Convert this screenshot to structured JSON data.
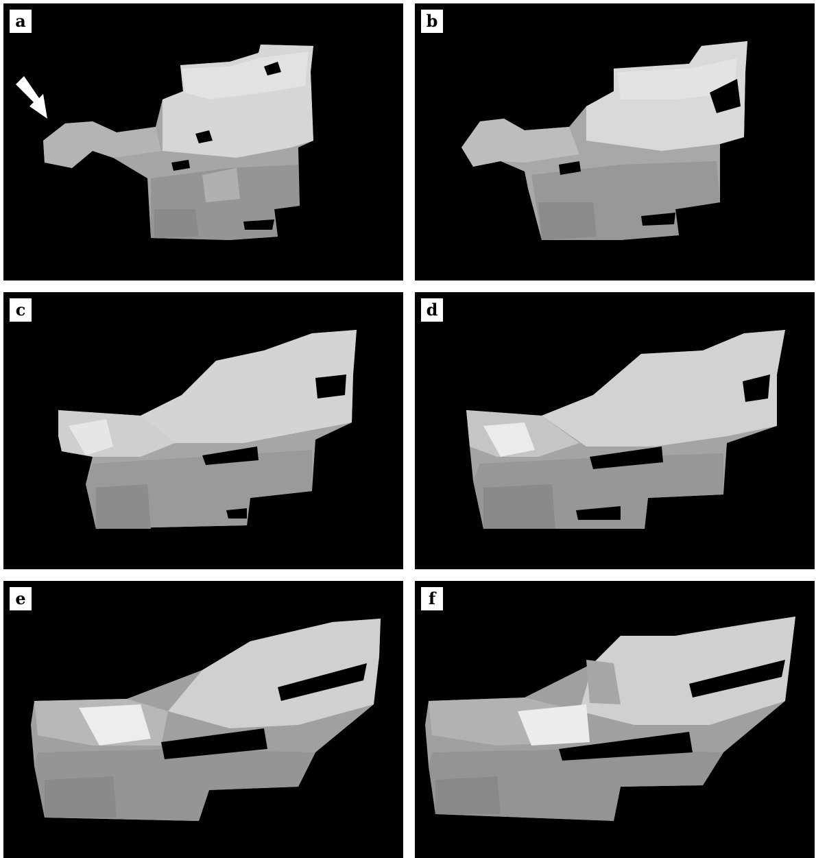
{
  "panels": [
    {
      "label": "a"
    },
    {
      "label": "b"
    },
    {
      "label": "c"
    },
    {
      "label": "d"
    },
    {
      "label": "e"
    },
    {
      "label": "f"
    }
  ],
  "colors": {
    "background": "#000000",
    "border": "#ffffff",
    "light_region": "#d8d8d8",
    "mid_region": "#a8a8a8",
    "dark_region": "#8a8a8a",
    "highlight": "#efefef"
  },
  "icons": [
    "arrow-pointer-icon"
  ]
}
